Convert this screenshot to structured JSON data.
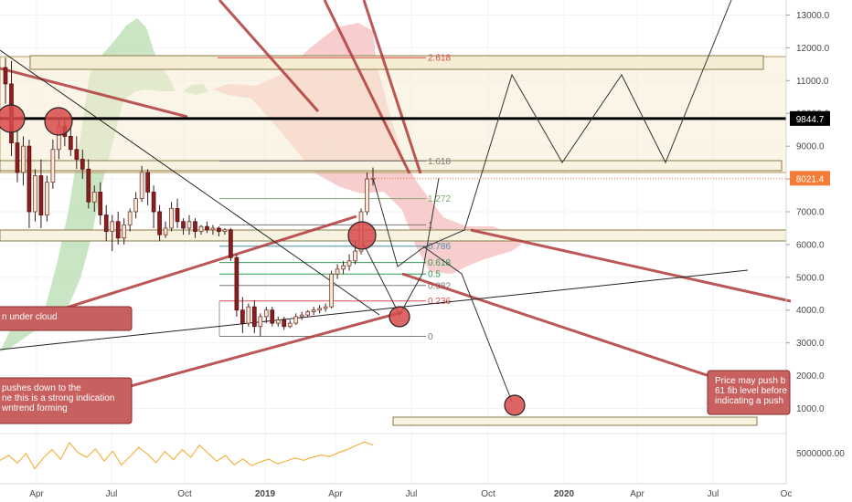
{
  "chart_data": {
    "type": "candlestick",
    "y_axis": {
      "ticks": [
        13000,
        12000,
        11000,
        10000,
        9000,
        8000,
        7000,
        6000,
        5000,
        4000,
        3000,
        2000,
        1000
      ],
      "tick_labels": [
        "13000.0",
        "12000.0",
        "11000.0",
        "10000.0",
        "9000.0",
        "8000.0",
        "7000.0",
        "6000.0",
        "5000.0",
        "4000.0",
        "3000.0",
        "2000.0",
        "1000.0"
      ],
      "ylim": [
        200,
        13500
      ]
    },
    "x_axis": {
      "tick_labels": [
        "Apr",
        "Jul",
        "Oct",
        "2019",
        "Apr",
        "Jul",
        "Oct",
        "2020",
        "Apr",
        "Jul",
        "Oc"
      ],
      "bold_labels": [
        "2019",
        "2020"
      ]
    },
    "price_labels": {
      "resistance": {
        "value": 9844.7,
        "text": "9844.7",
        "color": "#000000"
      },
      "last": {
        "value": 8021.4,
        "text": "8021.4",
        "color": "#f57c38"
      }
    },
    "fib_levels": [
      {
        "label": "2.618",
        "value": 11700,
        "color": "#e04a4a"
      },
      {
        "label": "1.618",
        "value": 8550,
        "color": "#7a7a7a"
      },
      {
        "label": "1.272",
        "value": 7400,
        "color": "#7fa86e"
      },
      {
        "label": "1",
        "value": 6600,
        "color": "#7a7a7a"
      },
      {
        "label": "0.786",
        "value": 5950,
        "color": "#4f8fa7"
      },
      {
        "label": "0.618",
        "value": 5450,
        "color": "#2e9b52"
      },
      {
        "label": "0.5",
        "value": 5100,
        "color": "#2e9b52"
      },
      {
        "label": "0.382",
        "value": 4750,
        "color": "#7a7a7a"
      },
      {
        "label": "0.236",
        "value": 4280,
        "color": "#e04a4a"
      },
      {
        "label": "0",
        "value": 3200,
        "color": "#7a7a7a"
      }
    ],
    "candles": [
      {
        "o": 11400,
        "h": 11700,
        "c": 10900,
        "l": 10300
      },
      {
        "o": 10900,
        "h": 11600,
        "c": 9100,
        "l": 8700
      },
      {
        "o": 9100,
        "h": 9500,
        "c": 8200,
        "l": 7900
      },
      {
        "o": 8200,
        "h": 9300,
        "c": 9000,
        "l": 7800
      },
      {
        "o": 9000,
        "h": 9200,
        "c": 7000,
        "l": 6500
      },
      {
        "o": 7000,
        "h": 8300,
        "c": 8100,
        "l": 6700
      },
      {
        "o": 8100,
        "h": 8600,
        "c": 6900,
        "l": 6500
      },
      {
        "o": 6900,
        "h": 8100,
        "c": 7900,
        "l": 6700
      },
      {
        "o": 7900,
        "h": 9200,
        "c": 8900,
        "l": 7700
      },
      {
        "o": 8900,
        "h": 9900,
        "c": 9600,
        "l": 8600
      },
      {
        "o": 9600,
        "h": 9800,
        "c": 9300,
        "l": 9000
      },
      {
        "o": 9300,
        "h": 9600,
        "c": 8900,
        "l": 8700
      },
      {
        "o": 8900,
        "h": 9300,
        "c": 8600,
        "l": 8300
      },
      {
        "o": 8600,
        "h": 8900,
        "c": 8300,
        "l": 8000
      },
      {
        "o": 8300,
        "h": 8600,
        "c": 7300,
        "l": 7100
      },
      {
        "o": 7300,
        "h": 7800,
        "c": 7600,
        "l": 7000
      },
      {
        "o": 7600,
        "h": 7900,
        "c": 6900,
        "l": 6600
      },
      {
        "o": 6900,
        "h": 7200,
        "c": 6400,
        "l": 6100
      },
      {
        "o": 6400,
        "h": 6900,
        "c": 6700,
        "l": 5800
      },
      {
        "o": 6700,
        "h": 7000,
        "c": 6200,
        "l": 6000
      },
      {
        "o": 6200,
        "h": 6800,
        "c": 6600,
        "l": 6000
      },
      {
        "o": 6600,
        "h": 7100,
        "c": 7000,
        "l": 6400
      },
      {
        "o": 7000,
        "h": 7600,
        "c": 7400,
        "l": 6800
      },
      {
        "o": 7400,
        "h": 8400,
        "c": 8200,
        "l": 7300
      },
      {
        "o": 8200,
        "h": 8300,
        "c": 7600,
        "l": 7200
      },
      {
        "o": 7600,
        "h": 7800,
        "c": 7000,
        "l": 6500
      },
      {
        "o": 7000,
        "h": 7200,
        "c": 6300,
        "l": 6100
      },
      {
        "o": 6300,
        "h": 6700,
        "c": 6500,
        "l": 6200
      },
      {
        "o": 6500,
        "h": 7300,
        "c": 7100,
        "l": 6400
      },
      {
        "o": 7100,
        "h": 7400,
        "c": 6700,
        "l": 6500
      },
      {
        "o": 6700,
        "h": 6800,
        "c": 6500,
        "l": 6300
      },
      {
        "o": 6500,
        "h": 6900,
        "c": 6700,
        "l": 6300
      },
      {
        "o": 6700,
        "h": 6800,
        "c": 6400,
        "l": 6200
      },
      {
        "o": 6400,
        "h": 6600,
        "c": 6550,
        "l": 6300
      },
      {
        "o": 6550,
        "h": 6700,
        "c": 6450,
        "l": 6350
      },
      {
        "o": 6450,
        "h": 6600,
        "c": 6500,
        "l": 6300
      },
      {
        "o": 6500,
        "h": 6550,
        "c": 6400,
        "l": 6250
      },
      {
        "o": 6400,
        "h": 6500,
        "c": 6450,
        "l": 6300
      },
      {
        "o": 6450,
        "h": 6500,
        "c": 5600,
        "l": 5500
      },
      {
        "o": 5600,
        "h": 5700,
        "c": 4000,
        "l": 3800
      },
      {
        "o": 4000,
        "h": 4400,
        "c": 3600,
        "l": 3300
      },
      {
        "o": 3600,
        "h": 4200,
        "c": 4100,
        "l": 3500
      },
      {
        "o": 4100,
        "h": 4300,
        "c": 3500,
        "l": 3300
      },
      {
        "o": 3500,
        "h": 3900,
        "c": 3800,
        "l": 3200
      },
      {
        "o": 3800,
        "h": 4100,
        "c": 4000,
        "l": 3600
      },
      {
        "o": 4000,
        "h": 4100,
        "c": 3600,
        "l": 3500
      },
      {
        "o": 3600,
        "h": 3800,
        "c": 3700,
        "l": 3500
      },
      {
        "o": 3700,
        "h": 3800,
        "c": 3500,
        "l": 3400
      },
      {
        "o": 3500,
        "h": 3700,
        "c": 3600,
        "l": 3450
      },
      {
        "o": 3600,
        "h": 3900,
        "c": 3800,
        "l": 3550
      },
      {
        "o": 3800,
        "h": 3950,
        "c": 3850,
        "l": 3700
      },
      {
        "o": 3850,
        "h": 4000,
        "c": 3950,
        "l": 3800
      },
      {
        "o": 3950,
        "h": 4100,
        "c": 4000,
        "l": 3850
      },
      {
        "o": 4000,
        "h": 4150,
        "c": 4050,
        "l": 3900
      },
      {
        "o": 4050,
        "h": 4200,
        "c": 4100,
        "l": 3950
      },
      {
        "o": 4100,
        "h": 5200,
        "c": 5100,
        "l": 4050
      },
      {
        "o": 5100,
        "h": 5400,
        "c": 5250,
        "l": 4950
      },
      {
        "o": 5250,
        "h": 5500,
        "c": 5350,
        "l": 5100
      },
      {
        "o": 5350,
        "h": 5700,
        "c": 5500,
        "l": 5200
      },
      {
        "o": 5500,
        "h": 6100,
        "c": 5800,
        "l": 5400
      },
      {
        "o": 5800,
        "h": 7100,
        "c": 7000,
        "l": 5700
      },
      {
        "o": 7000,
        "h": 8200,
        "c": 8000,
        "l": 6900
      },
      {
        "o": 8000,
        "h": 8350,
        "c": 8021,
        "l": 7800
      }
    ],
    "rsi_axis": {
      "tick_label": "5000000.00"
    },
    "rsi_series": [
      0.42,
      0.55,
      0.35,
      0.6,
      0.2,
      0.48,
      0.7,
      0.45,
      0.88,
      0.62,
      0.5,
      0.72,
      0.4,
      0.66,
      0.3,
      0.52,
      0.76,
      0.58,
      0.36,
      0.65,
      0.44,
      0.7,
      0.5,
      0.82,
      0.6,
      0.4,
      0.55,
      0.3,
      0.46,
      0.28,
      0.38,
      0.45,
      0.33,
      0.4,
      0.48,
      0.42,
      0.5,
      0.56,
      0.52,
      0.62,
      0.7,
      0.8,
      0.9,
      0.82
    ],
    "annotations": [
      {
        "text_lines": [
          "n under cloud"
        ]
      },
      {
        "text_lines": [
          "pushes down to the",
          "ne this is a strong indication",
          "wntrend forming"
        ]
      },
      {
        "text_lines": [
          "Price may push b",
          "61 fib level before",
          "indicating a push"
        ]
      }
    ]
  }
}
